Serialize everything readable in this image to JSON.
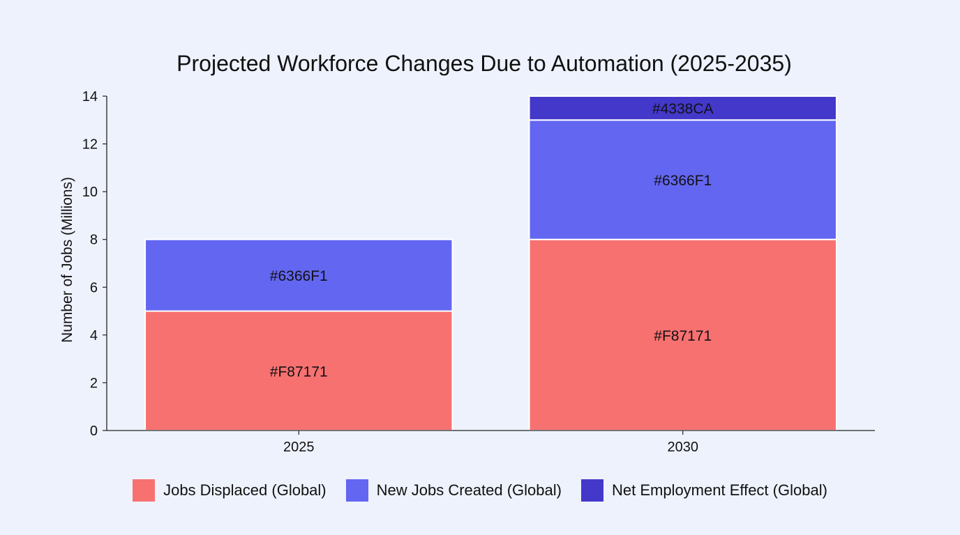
{
  "chart_data": {
    "type": "bar",
    "stacked": true,
    "title": "Projected Workforce Changes Due to Automation (2025-2035)",
    "xlabel": "",
    "ylabel": "Number of Jobs (Millions)",
    "ylim": [
      0,
      14
    ],
    "yticks": [
      0,
      2,
      4,
      6,
      8,
      10,
      12,
      14
    ],
    "categories": [
      "2025",
      "2030"
    ],
    "series": [
      {
        "name": "Jobs Displaced (Global)",
        "color": "#F87171",
        "values": [
          5,
          8
        ],
        "labels": [
          "#F87171",
          "#F87171"
        ]
      },
      {
        "name": "New Jobs Created (Global)",
        "color": "#6366F1",
        "values": [
          3,
          5
        ],
        "labels": [
          "#6366F1",
          "#6366F1"
        ]
      },
      {
        "name": "Net Employment Effect (Global)",
        "color": "#4338CA",
        "values": [
          0,
          1
        ],
        "labels": [
          "",
          "#4338CA"
        ]
      }
    ],
    "grid": false,
    "legend_position": "bottom"
  }
}
